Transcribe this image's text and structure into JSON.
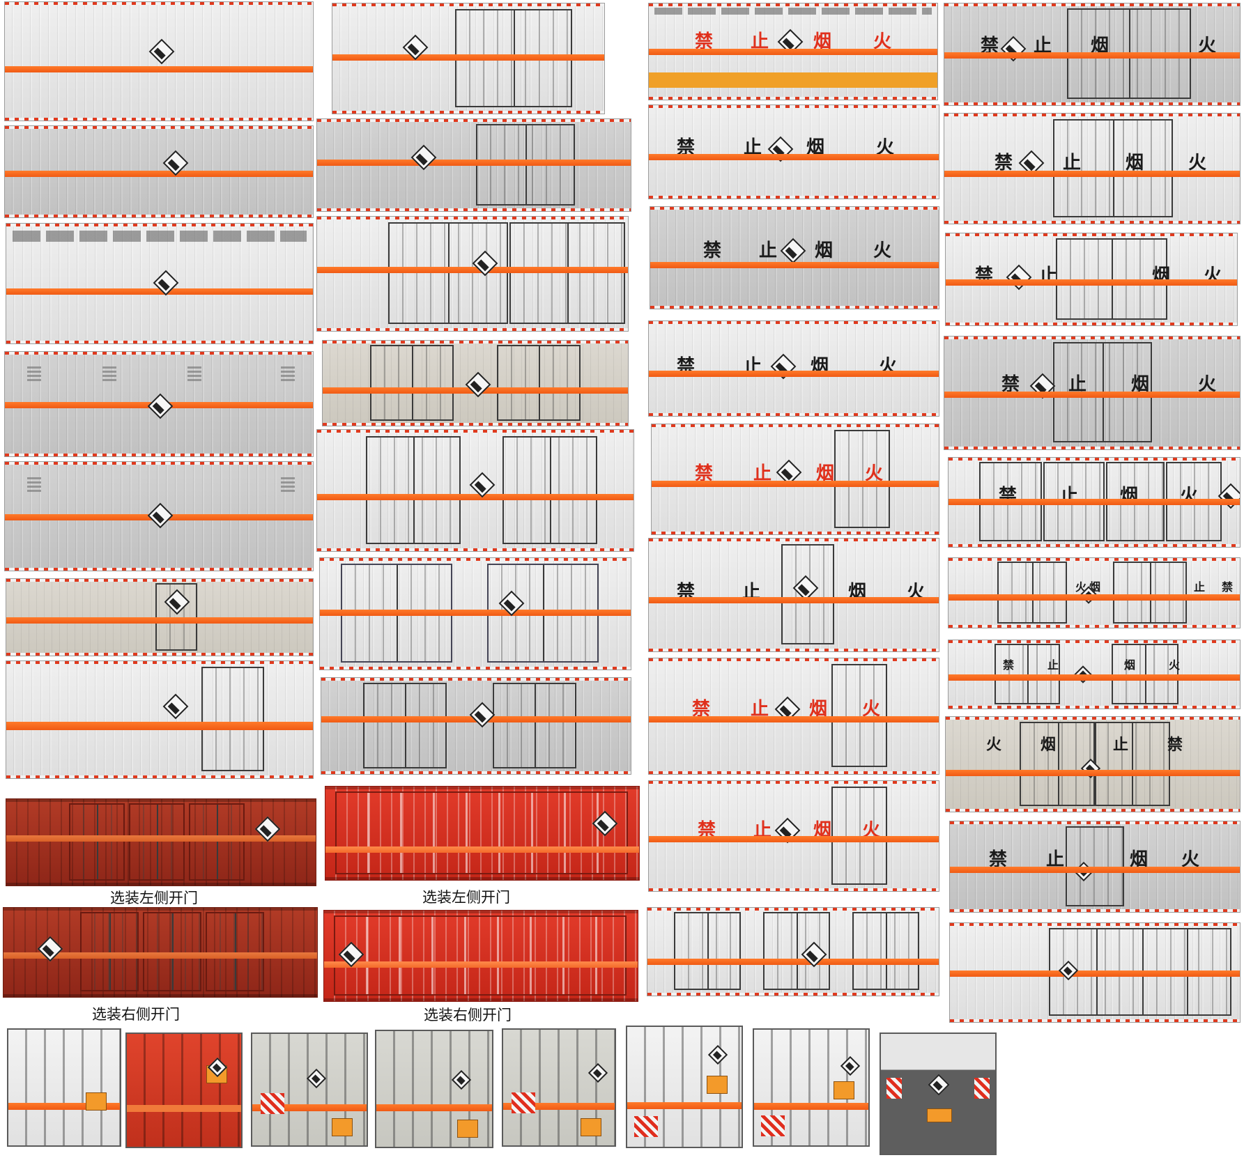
{
  "warning_text": [
    "禁",
    "止",
    "烟",
    "火"
  ],
  "captions": {
    "left_door_option_1": "选装左侧开门",
    "left_door_option_2": "选装左侧开门",
    "right_door_option_1": "选装右侧开门",
    "right_door_option_2": "选装右侧开门"
  },
  "hazard_sign": {
    "icon": "corrosive-hazard-diamond-icon"
  },
  "colors": {
    "reflective_stripe": "#f05a14",
    "warning_text_red": "#e0301c",
    "warning_text_black": "#1a1a1a",
    "red_box": "#a8321e",
    "bright_red_box": "#d8301e"
  }
}
